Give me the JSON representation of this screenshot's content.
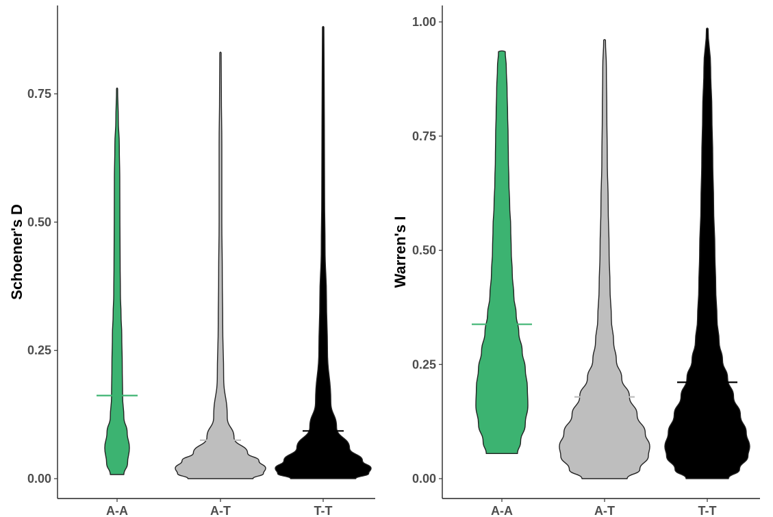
{
  "chart_data": [
    {
      "type": "violin",
      "title": "",
      "xlabel": "",
      "ylabel": "Schoener's D",
      "ylim": [
        0,
        0.9
      ],
      "yticks": [
        0.0,
        0.25,
        0.5,
        0.75
      ],
      "ytick_labels": [
        "0.00",
        "0.25",
        "0.50",
        "0.75"
      ],
      "grid": false,
      "categories": [
        "A-A",
        "A-T",
        "T-T"
      ],
      "series": [
        {
          "category": "A-A",
          "color": "#3cb371",
          "mean": 0.162,
          "min": 0.008,
          "max": 0.76,
          "density_profile": [
            [
              0.008,
              0.55
            ],
            [
              0.03,
              0.85
            ],
            [
              0.06,
              1.0
            ],
            [
              0.09,
              0.82
            ],
            [
              0.12,
              0.55
            ],
            [
              0.16,
              0.45
            ],
            [
              0.22,
              0.42
            ],
            [
              0.28,
              0.38
            ],
            [
              0.32,
              0.32
            ],
            [
              0.36,
              0.27
            ],
            [
              0.42,
              0.25
            ],
            [
              0.5,
              0.23
            ],
            [
              0.58,
              0.22
            ],
            [
              0.65,
              0.18
            ],
            [
              0.7,
              0.1
            ],
            [
              0.76,
              0.03
            ]
          ]
        },
        {
          "category": "A-T",
          "color": "#bebebe",
          "mean": 0.075,
          "min": 0.0,
          "max": 0.83,
          "density_profile": [
            [
              0.0,
              0.72
            ],
            [
              0.01,
              0.95
            ],
            [
              0.02,
              1.0
            ],
            [
              0.035,
              0.85
            ],
            [
              0.05,
              0.6
            ],
            [
              0.08,
              0.3
            ],
            [
              0.12,
              0.15
            ],
            [
              0.2,
              0.07
            ],
            [
              0.3,
              0.05
            ],
            [
              0.4,
              0.04
            ],
            [
              0.5,
              0.03
            ],
            [
              0.65,
              0.03
            ],
            [
              0.75,
              0.02
            ],
            [
              0.83,
              0.015
            ]
          ]
        },
        {
          "category": "T-T",
          "color": "#000000",
          "mean": 0.093,
          "min": 0.0,
          "max": 0.88,
          "density_profile": [
            [
              0.0,
              0.68
            ],
            [
              0.01,
              0.95
            ],
            [
              0.02,
              1.0
            ],
            [
              0.035,
              0.82
            ],
            [
              0.06,
              0.55
            ],
            [
              0.1,
              0.28
            ],
            [
              0.15,
              0.16
            ],
            [
              0.25,
              0.09
            ],
            [
              0.35,
              0.07
            ],
            [
              0.45,
              0.04
            ],
            [
              0.55,
              0.03
            ],
            [
              0.7,
              0.025
            ],
            [
              0.8,
              0.02
            ],
            [
              0.88,
              0.015
            ]
          ]
        }
      ]
    },
    {
      "type": "violin",
      "title": "",
      "xlabel": "",
      "ylabel": "Warren's I",
      "ylim": [
        0,
        1.0
      ],
      "yticks": [
        0.0,
        0.25,
        0.5,
        0.75,
        1.0
      ],
      "ytick_labels": [
        "0.00",
        "0.25",
        "0.50",
        "0.75",
        "1.00"
      ],
      "grid": false,
      "categories": [
        "A-A",
        "A-T",
        "T-T"
      ],
      "series": [
        {
          "category": "A-A",
          "color": "#3cb371",
          "mean": 0.338,
          "min": 0.055,
          "max": 0.935,
          "density_profile": [
            [
              0.055,
              0.6
            ],
            [
              0.08,
              0.72
            ],
            [
              0.12,
              0.9
            ],
            [
              0.16,
              1.0
            ],
            [
              0.2,
              0.98
            ],
            [
              0.24,
              0.9
            ],
            [
              0.28,
              0.78
            ],
            [
              0.32,
              0.65
            ],
            [
              0.36,
              0.55
            ],
            [
              0.4,
              0.46
            ],
            [
              0.45,
              0.4
            ],
            [
              0.5,
              0.36
            ],
            [
              0.55,
              0.34
            ],
            [
              0.6,
              0.3
            ],
            [
              0.65,
              0.27
            ],
            [
              0.7,
              0.25
            ],
            [
              0.75,
              0.24
            ],
            [
              0.8,
              0.22
            ],
            [
              0.85,
              0.2
            ],
            [
              0.9,
              0.17
            ],
            [
              0.935,
              0.13
            ]
          ]
        },
        {
          "category": "A-T",
          "color": "#bebebe",
          "mean": 0.179,
          "min": 0.0,
          "max": 0.96,
          "density_profile": [
            [
              0.0,
              0.5
            ],
            [
              0.02,
              0.78
            ],
            [
              0.05,
              0.97
            ],
            [
              0.07,
              1.0
            ],
            [
              0.1,
              0.9
            ],
            [
              0.14,
              0.72
            ],
            [
              0.18,
              0.55
            ],
            [
              0.22,
              0.38
            ],
            [
              0.26,
              0.26
            ],
            [
              0.3,
              0.2
            ],
            [
              0.35,
              0.15
            ],
            [
              0.42,
              0.12
            ],
            [
              0.5,
              0.1
            ],
            [
              0.6,
              0.08
            ],
            [
              0.7,
              0.06
            ],
            [
              0.8,
              0.05
            ],
            [
              0.9,
              0.04
            ],
            [
              0.96,
              0.02
            ]
          ]
        },
        {
          "category": "T-T",
          "color": "#000000",
          "mean": 0.211,
          "min": 0.0,
          "max": 0.985,
          "density_profile": [
            [
              0.0,
              0.5
            ],
            [
              0.02,
              0.76
            ],
            [
              0.05,
              0.96
            ],
            [
              0.07,
              1.0
            ],
            [
              0.1,
              0.92
            ],
            [
              0.14,
              0.78
            ],
            [
              0.18,
              0.62
            ],
            [
              0.22,
              0.48
            ],
            [
              0.26,
              0.36
            ],
            [
              0.3,
              0.28
            ],
            [
              0.35,
              0.23
            ],
            [
              0.42,
              0.2
            ],
            [
              0.5,
              0.18
            ],
            [
              0.6,
              0.15
            ],
            [
              0.7,
              0.13
            ],
            [
              0.8,
              0.11
            ],
            [
              0.9,
              0.08
            ],
            [
              0.985,
              0.02
            ]
          ]
        }
      ]
    }
  ]
}
